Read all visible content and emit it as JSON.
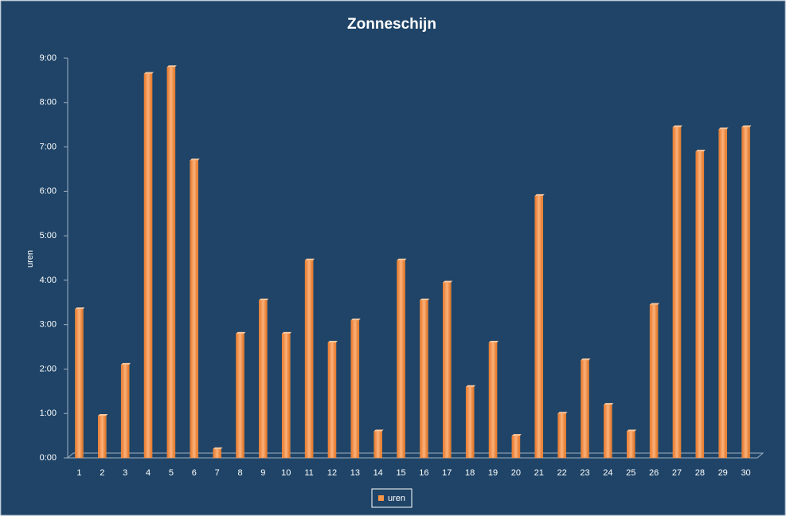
{
  "chart_data": {
    "type": "bar",
    "title": "Zonneschijn",
    "ylabel": "uren",
    "categories": [
      "1",
      "2",
      "3",
      "4",
      "5",
      "6",
      "7",
      "8",
      "9",
      "10",
      "11",
      "12",
      "13",
      "14",
      "15",
      "16",
      "17",
      "18",
      "19",
      "20",
      "21",
      "22",
      "23",
      "24",
      "25",
      "26",
      "27",
      "28",
      "29",
      "30"
    ],
    "series": [
      {
        "name": "uren",
        "color": "#f79646",
        "values": [
          3.35,
          0.95,
          2.1,
          8.65,
          8.8,
          6.7,
          0.2,
          2.8,
          3.55,
          2.8,
          4.45,
          2.6,
          3.1,
          0.6,
          4.45,
          3.55,
          3.95,
          1.6,
          2.6,
          0.5,
          5.9,
          1.0,
          2.2,
          1.2,
          0.6,
          3.45,
          7.45,
          6.9,
          7.4,
          7.45
        ]
      }
    ],
    "ylim": [
      0,
      9
    ],
    "yticks": [
      {
        "value": 0,
        "label": "0:00"
      },
      {
        "value": 1,
        "label": "1:00"
      },
      {
        "value": 2,
        "label": "2:00"
      },
      {
        "value": 3,
        "label": "3:00"
      },
      {
        "value": 4,
        "label": "4:00"
      },
      {
        "value": 5,
        "label": "5:00"
      },
      {
        "value": 6,
        "label": "6:00"
      },
      {
        "value": 7,
        "label": "7:00"
      },
      {
        "value": 8,
        "label": "8:00"
      },
      {
        "value": 9,
        "label": "9:00"
      }
    ],
    "legend": "bottom",
    "grid": false
  }
}
